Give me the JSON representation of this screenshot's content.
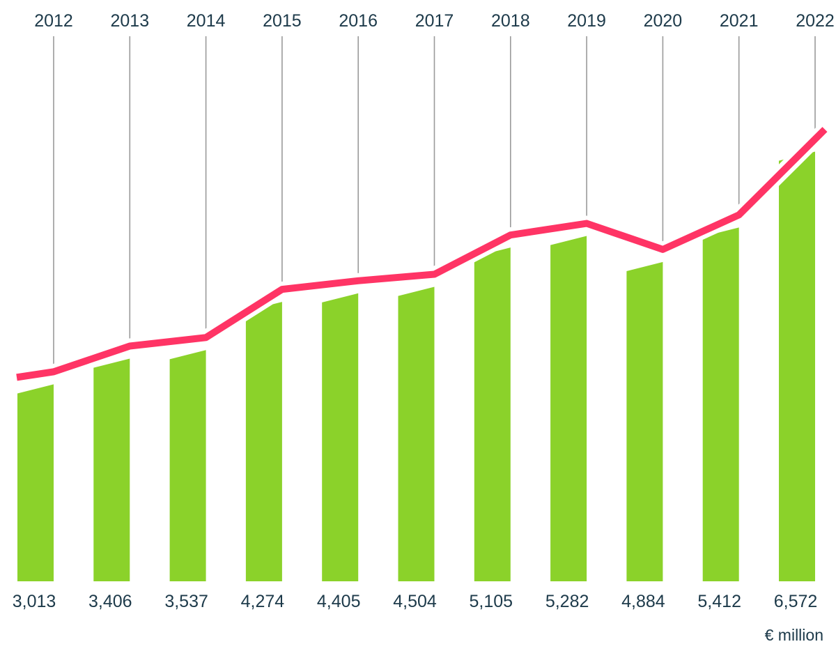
{
  "chart_data": {
    "type": "bar",
    "categories": [
      "2012",
      "2013",
      "2014",
      "2015",
      "2016",
      "2017",
      "2018",
      "2019",
      "2020",
      "2021",
      "2022"
    ],
    "values": [
      3013,
      3406,
      3537,
      4274,
      4405,
      4504,
      5105,
      5282,
      4884,
      5412,
      6572
    ],
    "value_labels": [
      "3,013",
      "3,406",
      "3,537",
      "4,274",
      "4,405",
      "4,504",
      "5,105",
      "5,282",
      "4,884",
      "5,412",
      "6,572"
    ],
    "unit": "€ million",
    "title": "",
    "xlabel": "",
    "ylabel": "",
    "grid": false,
    "legend": "none",
    "overlay_line": "trend line following bar tops",
    "colors": {
      "bar": "#8bd22a",
      "line": "#ff3465",
      "leader": "#9a9a9a",
      "text": "#1d3a4a"
    }
  }
}
